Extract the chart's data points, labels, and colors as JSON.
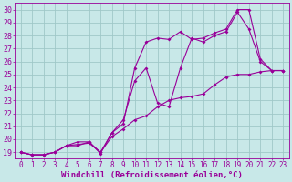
{
  "bg_color": "#c8e8e8",
  "line_color": "#990099",
  "grid_color": "#a0c8c8",
  "xlabel": "Windchill (Refroidissement éolien,°C)",
  "xlabel_fontsize": 6.5,
  "ytick_fontsize": 6.0,
  "xtick_fontsize": 5.5,
  "ylim": [
    18.5,
    30.5
  ],
  "xlim": [
    -0.5,
    23.5
  ],
  "yticks": [
    19,
    20,
    21,
    22,
    23,
    24,
    25,
    26,
    27,
    28,
    29,
    30
  ],
  "xticks": [
    0,
    1,
    2,
    3,
    4,
    5,
    6,
    7,
    8,
    9,
    10,
    11,
    12,
    13,
    14,
    15,
    16,
    17,
    18,
    19,
    20,
    21,
    22,
    23
  ],
  "line1_x": [
    0,
    1,
    2,
    3,
    4,
    5,
    6,
    7,
    8,
    9,
    10,
    11,
    12,
    13,
    14,
    15,
    16,
    17,
    18,
    19,
    20,
    21,
    22,
    23
  ],
  "line1_y": [
    19.0,
    18.8,
    18.8,
    19.0,
    19.5,
    19.6,
    19.7,
    19.0,
    20.2,
    20.8,
    21.5,
    21.8,
    22.5,
    23.0,
    23.2,
    23.3,
    23.5,
    24.2,
    24.8,
    25.0,
    25.0,
    25.2,
    25.3,
    25.3
  ],
  "line2_x": [
    0,
    1,
    2,
    3,
    4,
    5,
    6,
    7,
    8,
    9,
    10,
    11,
    12,
    13,
    14,
    15,
    16,
    17,
    18,
    19,
    20,
    21,
    22,
    23
  ],
  "line2_y": [
    19.0,
    18.8,
    18.8,
    19.0,
    19.5,
    19.5,
    19.8,
    18.9,
    20.5,
    21.2,
    25.5,
    27.5,
    27.8,
    27.7,
    28.3,
    27.7,
    27.8,
    28.2,
    28.5,
    30.0,
    30.0,
    26.2,
    25.3,
    25.3
  ],
  "line3_x": [
    0,
    1,
    2,
    3,
    4,
    5,
    6,
    7,
    8,
    9,
    10,
    11,
    12,
    13,
    14,
    15,
    16,
    17,
    18,
    19,
    20,
    21,
    22,
    23
  ],
  "line3_y": [
    19.0,
    18.8,
    18.8,
    19.0,
    19.5,
    19.8,
    19.8,
    19.0,
    20.5,
    21.5,
    24.5,
    25.5,
    22.8,
    22.5,
    25.5,
    27.8,
    27.5,
    28.0,
    28.3,
    29.8,
    28.5,
    26.0,
    25.3,
    25.3
  ]
}
